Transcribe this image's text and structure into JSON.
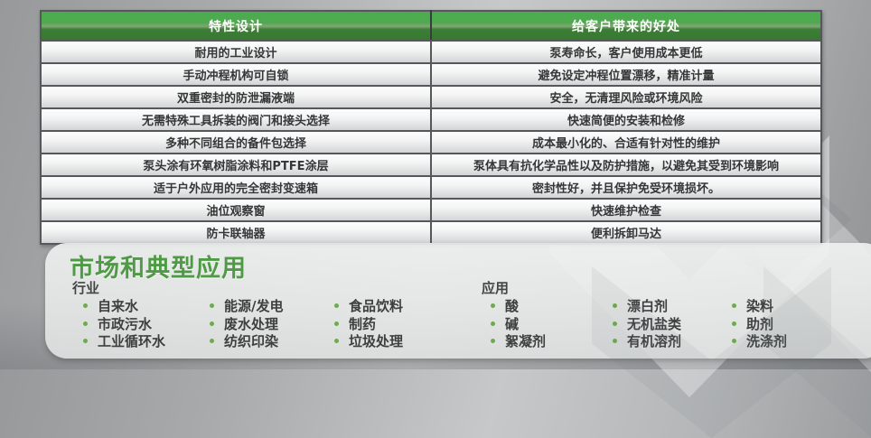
{
  "table": {
    "headers": [
      "特性设计",
      "给客户带来的好处"
    ],
    "rows": [
      [
        "耐用的工业设计",
        "泵寿命长，客户使用成本更低"
      ],
      [
        "手动冲程机构可自锁",
        "避免设定冲程位置漂移，精准计量"
      ],
      [
        "双重密封的防泄漏液端",
        "安全，无清理风险或环境风险"
      ],
      [
        "无需特殊工具拆装的阀门和接头选择",
        "快速简便的安装和检修"
      ],
      [
        "多种不同组合的备件包选择",
        "成本最小化的、合适有针对性的维护"
      ],
      [
        "泵头涂有环氧树脂涂料和PTFE涂层",
        "泵体具有抗化学品性以及防护措施，以避免其受到环境影响"
      ],
      [
        "适于户外应用的完全密封变速箱",
        "密封性好，并且保护免受环境损坏。"
      ],
      [
        "油位观察窗",
        "快速维护检查"
      ],
      [
        "防卡联轴器",
        "便利拆卸马达"
      ]
    ]
  },
  "markets": {
    "title": "市场和典型应用",
    "groups": [
      {
        "label": "行业",
        "columns": [
          [
            "自来水",
            "市政污水",
            "工业循环水"
          ],
          [
            "能源/发电",
            "废水处理",
            "纺织印染"
          ],
          [
            "食品饮料",
            "制药",
            "垃圾处理"
          ]
        ]
      },
      {
        "label": "应用",
        "columns": [
          [
            "酸",
            "碱",
            "絮凝剂"
          ],
          [
            "漂白剂",
            "无机盐类",
            "有机溶剂"
          ],
          [
            "染料",
            "助剂",
            "洗涤剂"
          ]
        ]
      }
    ]
  },
  "colors": {
    "header_green_top": "#4cab4e",
    "header_green_bottom": "#377931",
    "title_green": "#4f9b45",
    "bullet_green": "#6faa4b",
    "cell_text": "#353637",
    "page_gray": "#b4b6b8"
  }
}
